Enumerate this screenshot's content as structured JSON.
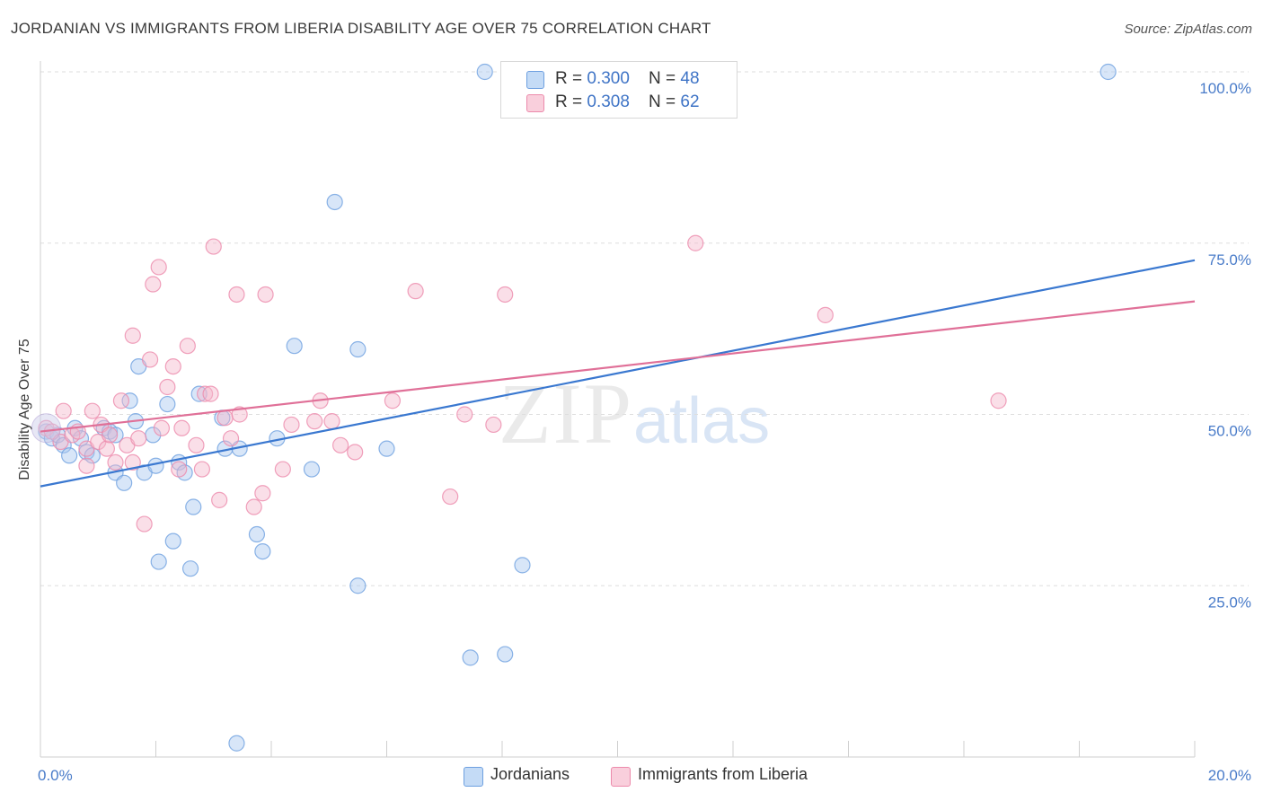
{
  "title": "JORDANIAN VS IMMIGRANTS FROM LIBERIA DISABILITY AGE OVER 75 CORRELATION CHART",
  "source": "Source: ZipAtlas.com",
  "watermark": {
    "zip": "ZIP",
    "atlas": "atlas"
  },
  "legend": {
    "rows": [
      {
        "r_label": "R = ",
        "r_value": "0.300",
        "n_label": "N = ",
        "n_value": "48",
        "color": "#a8c8f0"
      },
      {
        "r_label": "R = ",
        "r_value": "0.308",
        "n_label": "N = ",
        "n_value": "62",
        "color": "#f5b8cb"
      }
    ]
  },
  "chart_data": {
    "type": "scatter",
    "ylabel": "Disability Age Over 75",
    "xlim": [
      0,
      20
    ],
    "ylim": [
      0,
      100
    ],
    "x_tick_labels": [
      {
        "value": 0,
        "label": "0.0%"
      },
      {
        "value": 20,
        "label": "20.0%"
      }
    ],
    "y_tick_labels": [
      {
        "value": 100,
        "label": "100.0%"
      },
      {
        "value": 75,
        "label": "75.0%"
      },
      {
        "value": 50,
        "label": "50.0%"
      },
      {
        "value": 25,
        "label": "25.0%"
      }
    ],
    "grid": true,
    "legend_placement": "top-center",
    "series": [
      {
        "name": "Jordanians",
        "color": "#6ea0e0",
        "fill": "#a8c8f0",
        "trend": {
          "x": [
            0,
            20
          ],
          "y": [
            39.5,
            72.5
          ],
          "color": "#3a78d0"
        },
        "points": [
          [
            0.1,
            47.5
          ],
          [
            0.2,
            46.5
          ],
          [
            0.3,
            47.0
          ],
          [
            0.4,
            45.5
          ],
          [
            0.5,
            44.0
          ],
          [
            0.6,
            48.0
          ],
          [
            0.7,
            46.5
          ],
          [
            0.8,
            44.5
          ],
          [
            0.9,
            44.0
          ],
          [
            1.1,
            48.0
          ],
          [
            1.2,
            47.5
          ],
          [
            1.3,
            47.0
          ],
          [
            1.3,
            41.5
          ],
          [
            1.45,
            40.0
          ],
          [
            1.55,
            52.0
          ],
          [
            1.65,
            49.0
          ],
          [
            1.7,
            57.0
          ],
          [
            1.8,
            41.5
          ],
          [
            1.95,
            47.0
          ],
          [
            2.0,
            42.5
          ],
          [
            2.05,
            28.5
          ],
          [
            2.2,
            51.5
          ],
          [
            2.3,
            31.5
          ],
          [
            2.4,
            43.0
          ],
          [
            2.5,
            41.5
          ],
          [
            2.6,
            27.5
          ],
          [
            2.65,
            36.5
          ],
          [
            2.75,
            53.0
          ],
          [
            3.15,
            49.5
          ],
          [
            3.2,
            45.0
          ],
          [
            3.45,
            45.0
          ],
          [
            3.4,
            2.0
          ],
          [
            3.75,
            32.5
          ],
          [
            3.85,
            30.0
          ],
          [
            4.1,
            46.5
          ],
          [
            4.4,
            60.0
          ],
          [
            4.7,
            42.0
          ],
          [
            5.1,
            81.0
          ],
          [
            5.5,
            59.5
          ],
          [
            5.5,
            25.0
          ],
          [
            6.0,
            45.0
          ],
          [
            7.45,
            14.5
          ],
          [
            7.7,
            100.0
          ],
          [
            8.05,
            15.0
          ],
          [
            8.35,
            28.0
          ],
          [
            18.5,
            100.0
          ]
        ]
      },
      {
        "name": "Immigrants from Liberia",
        "color": "#ec8aab",
        "fill": "#f5b8cb",
        "trend": {
          "x": [
            0,
            20
          ],
          "y": [
            47.5,
            66.5
          ],
          "color": "#e07098"
        },
        "points": [
          [
            0.1,
            48.0
          ],
          [
            0.2,
            47.5
          ],
          [
            0.35,
            46.0
          ],
          [
            0.4,
            50.5
          ],
          [
            0.55,
            47.0
          ],
          [
            0.65,
            47.5
          ],
          [
            0.8,
            45.0
          ],
          [
            0.8,
            42.5
          ],
          [
            0.9,
            50.5
          ],
          [
            1.0,
            46.0
          ],
          [
            1.05,
            48.5
          ],
          [
            1.15,
            45.0
          ],
          [
            1.2,
            47.0
          ],
          [
            1.3,
            43.0
          ],
          [
            1.4,
            52.0
          ],
          [
            1.5,
            45.5
          ],
          [
            1.6,
            43.0
          ],
          [
            1.6,
            61.5
          ],
          [
            1.7,
            46.5
          ],
          [
            1.8,
            34.0
          ],
          [
            1.9,
            58.0
          ],
          [
            1.95,
            69.0
          ],
          [
            2.05,
            71.5
          ],
          [
            2.1,
            48.0
          ],
          [
            2.2,
            54.0
          ],
          [
            2.3,
            57.0
          ],
          [
            2.4,
            42.0
          ],
          [
            2.45,
            48.0
          ],
          [
            2.55,
            60.0
          ],
          [
            2.7,
            45.5
          ],
          [
            2.8,
            42.0
          ],
          [
            2.85,
            53.0
          ],
          [
            2.95,
            53.0
          ],
          [
            3.0,
            74.5
          ],
          [
            3.1,
            37.5
          ],
          [
            3.2,
            49.5
          ],
          [
            3.3,
            46.5
          ],
          [
            3.4,
            67.5
          ],
          [
            3.45,
            50.0
          ],
          [
            3.7,
            36.5
          ],
          [
            3.85,
            38.5
          ],
          [
            3.9,
            67.5
          ],
          [
            4.2,
            42.0
          ],
          [
            4.35,
            48.5
          ],
          [
            4.75,
            49.0
          ],
          [
            4.85,
            52.0
          ],
          [
            5.05,
            49.0
          ],
          [
            5.2,
            45.5
          ],
          [
            5.45,
            44.5
          ],
          [
            6.1,
            52.0
          ],
          [
            6.5,
            68.0
          ],
          [
            7.1,
            38.0
          ],
          [
            7.35,
            50.0
          ],
          [
            7.85,
            48.5
          ],
          [
            8.05,
            67.5
          ],
          [
            11.35,
            75.0
          ],
          [
            13.6,
            64.5
          ],
          [
            16.6,
            52.0
          ]
        ]
      }
    ]
  }
}
